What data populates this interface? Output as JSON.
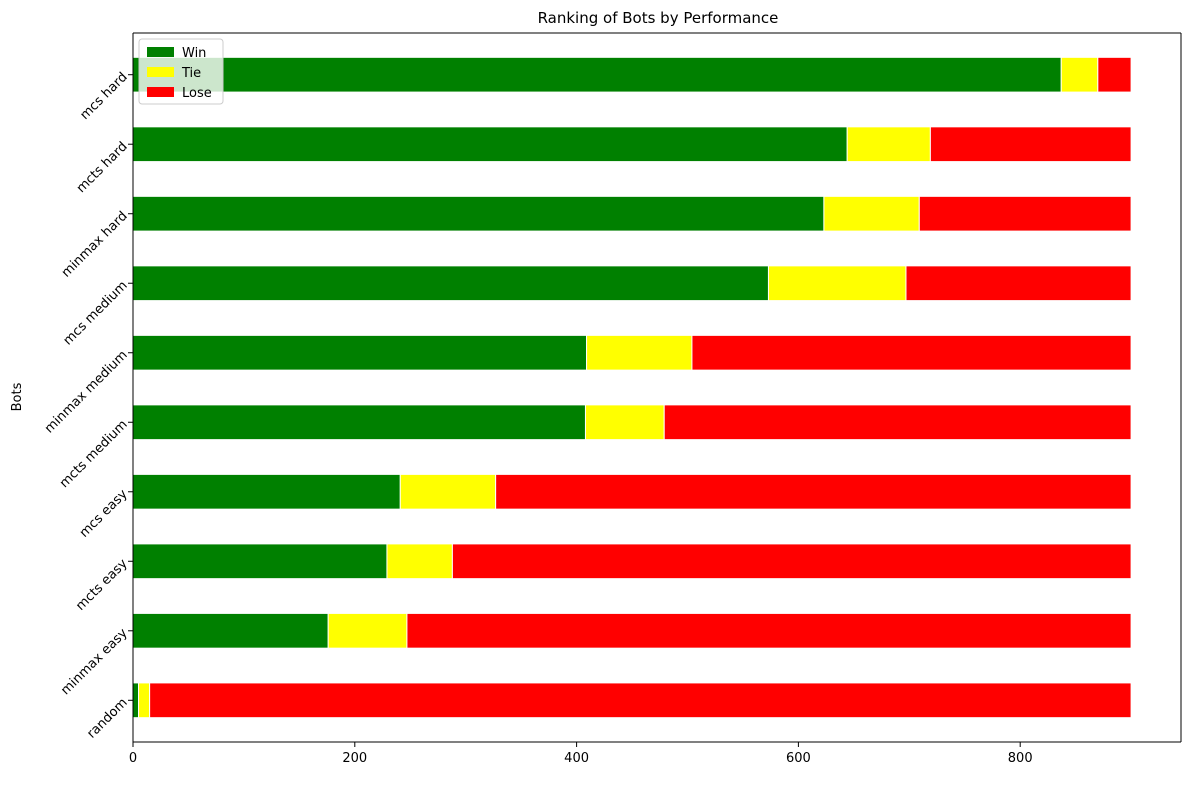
{
  "chart_data": {
    "type": "bar",
    "orientation": "horizontal",
    "stacked": true,
    "title": "Ranking of Bots by Performance",
    "xlabel": "",
    "ylabel": "Bots",
    "xlim": [
      0,
      945
    ],
    "xticks": [
      0,
      200,
      400,
      600,
      800
    ],
    "grid": false,
    "legend_position": "top-left",
    "categories": [
      "random",
      "minmax easy",
      "mcts easy",
      "mcs easy",
      "mcts medium",
      "minmax medium",
      "mcs medium",
      "minmax hard",
      "mcts hard",
      "mcs hard"
    ],
    "series": [
      {
        "name": "Win",
        "color": "#008000",
        "values": [
          5,
          176,
          229,
          241,
          408,
          409,
          573,
          623,
          644,
          837
        ]
      },
      {
        "name": "Tie",
        "color": "#ffff00",
        "values": [
          10,
          71,
          59,
          86,
          71,
          95,
          124,
          86,
          75,
          33
        ]
      },
      {
        "name": "Lose",
        "color": "#ff0000",
        "values": [
          885,
          653,
          612,
          573,
          421,
          396,
          203,
          191,
          181,
          30
        ]
      }
    ]
  }
}
